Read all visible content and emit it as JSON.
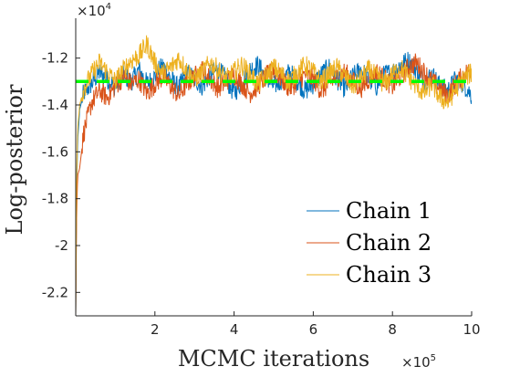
{
  "chart_data": {
    "type": "line",
    "xlabel": "MCMC iterations",
    "ylabel": "Log-posterior",
    "x_exponent_label": "×10",
    "x_exponent_power": "5",
    "y_exponent_label": "×10",
    "y_exponent_power": "4",
    "x_scale": 100000,
    "y_scale": 10000,
    "xlim": [
      0,
      1000000
    ],
    "ylim": [
      -23000,
      -10300
    ],
    "x_ticks": [
      200000,
      400000,
      600000,
      800000,
      1000000
    ],
    "x_tick_labels": [
      "2",
      "4",
      "6",
      "8",
      "10"
    ],
    "y_ticks": [
      -22000,
      -20000,
      -18000,
      -16000,
      -14000,
      -12000
    ],
    "y_tick_labels": [
      "-2.2",
      "-2",
      "-1.8",
      "-1.6",
      "-1.4",
      "-1.2"
    ],
    "grid": false,
    "legend_position": "bottom-right",
    "reference_line": {
      "y": -13000,
      "color": "#00ff00",
      "style": "dashed"
    },
    "series": [
      {
        "name": "Chain 1",
        "color": "#0072bd",
        "points": [
          [
            0,
            -23000
          ],
          [
            2000,
            -18000
          ],
          [
            5000,
            -15500
          ],
          [
            10000,
            -14200
          ],
          [
            20000,
            -13500
          ],
          [
            40000,
            -13100
          ],
          [
            60000,
            -12600
          ],
          [
            80000,
            -12900
          ],
          [
            100000,
            -13200
          ],
          [
            120000,
            -12700
          ],
          [
            140000,
            -13000
          ],
          [
            160000,
            -12500
          ],
          [
            180000,
            -13100
          ],
          [
            200000,
            -12800
          ],
          [
            220000,
            -12300
          ],
          [
            240000,
            -12900
          ],
          [
            260000,
            -13300
          ],
          [
            280000,
            -12600
          ],
          [
            300000,
            -12900
          ],
          [
            320000,
            -13200
          ],
          [
            340000,
            -12700
          ],
          [
            360000,
            -12500
          ],
          [
            380000,
            -12900
          ],
          [
            400000,
            -13500
          ],
          [
            420000,
            -13000
          ],
          [
            440000,
            -12500
          ],
          [
            460000,
            -12300
          ],
          [
            480000,
            -12800
          ],
          [
            500000,
            -13200
          ],
          [
            520000,
            -12900
          ],
          [
            540000,
            -12600
          ],
          [
            560000,
            -13000
          ],
          [
            580000,
            -13400
          ],
          [
            600000,
            -13100
          ],
          [
            620000,
            -12700
          ],
          [
            640000,
            -12400
          ],
          [
            660000,
            -12900
          ],
          [
            680000,
            -13300
          ],
          [
            700000,
            -12800
          ],
          [
            720000,
            -12500
          ],
          [
            740000,
            -12900
          ],
          [
            760000,
            -13200
          ],
          [
            780000,
            -12700
          ],
          [
            800000,
            -12600
          ],
          [
            820000,
            -12300
          ],
          [
            840000,
            -12100
          ],
          [
            860000,
            -12500
          ],
          [
            880000,
            -13000
          ],
          [
            900000,
            -12700
          ],
          [
            920000,
            -13200
          ],
          [
            940000,
            -13400
          ],
          [
            960000,
            -12900
          ],
          [
            980000,
            -13100
          ],
          [
            1000000,
            -13600
          ]
        ]
      },
      {
        "name": "Chain 2",
        "color": "#d95319",
        "points": [
          [
            0,
            -23000
          ],
          [
            2000,
            -19000
          ],
          [
            5000,
            -17000
          ],
          [
            10000,
            -16700
          ],
          [
            20000,
            -15200
          ],
          [
            40000,
            -13900
          ],
          [
            60000,
            -13400
          ],
          [
            80000,
            -13700
          ],
          [
            100000,
            -13200
          ],
          [
            120000,
            -12800
          ],
          [
            140000,
            -13100
          ],
          [
            160000,
            -12900
          ],
          [
            180000,
            -13500
          ],
          [
            200000,
            -13100
          ],
          [
            220000,
            -12800
          ],
          [
            240000,
            -13200
          ],
          [
            260000,
            -13600
          ],
          [
            280000,
            -13100
          ],
          [
            300000,
            -12800
          ],
          [
            320000,
            -12500
          ],
          [
            340000,
            -12900
          ],
          [
            360000,
            -13300
          ],
          [
            380000,
            -13000
          ],
          [
            400000,
            -12700
          ],
          [
            420000,
            -13100
          ],
          [
            440000,
            -13500
          ],
          [
            460000,
            -13200
          ],
          [
            480000,
            -12800
          ],
          [
            500000,
            -12500
          ],
          [
            520000,
            -12900
          ],
          [
            540000,
            -13300
          ],
          [
            560000,
            -13000
          ],
          [
            580000,
            -12700
          ],
          [
            600000,
            -12900
          ],
          [
            620000,
            -13400
          ],
          [
            640000,
            -13100
          ],
          [
            660000,
            -12800
          ],
          [
            680000,
            -12600
          ],
          [
            700000,
            -13000
          ],
          [
            720000,
            -13300
          ],
          [
            740000,
            -12900
          ],
          [
            760000,
            -12600
          ],
          [
            780000,
            -12900
          ],
          [
            800000,
            -13200
          ],
          [
            820000,
            -12800
          ],
          [
            840000,
            -12400
          ],
          [
            860000,
            -12200
          ],
          [
            880000,
            -12600
          ],
          [
            900000,
            -13000
          ],
          [
            920000,
            -13300
          ],
          [
            940000,
            -13600
          ],
          [
            960000,
            -13100
          ],
          [
            980000,
            -12700
          ],
          [
            1000000,
            -12500
          ]
        ]
      },
      {
        "name": "Chain 3",
        "color": "#edb120",
        "points": [
          [
            0,
            -23000
          ],
          [
            2000,
            -17500
          ],
          [
            5000,
            -15000
          ],
          [
            10000,
            -14000
          ],
          [
            20000,
            -13300
          ],
          [
            40000,
            -12700
          ],
          [
            60000,
            -12200
          ],
          [
            80000,
            -12600
          ],
          [
            100000,
            -13000
          ],
          [
            120000,
            -12500
          ],
          [
            140000,
            -12100
          ],
          [
            160000,
            -11900
          ],
          [
            180000,
            -11400
          ],
          [
            200000,
            -12200
          ],
          [
            220000,
            -12700
          ],
          [
            240000,
            -12400
          ],
          [
            260000,
            -12000
          ],
          [
            280000,
            -12500
          ],
          [
            300000,
            -12900
          ],
          [
            320000,
            -12600
          ],
          [
            340000,
            -12200
          ],
          [
            360000,
            -12500
          ],
          [
            380000,
            -12900
          ],
          [
            400000,
            -12600
          ],
          [
            420000,
            -12300
          ],
          [
            440000,
            -12700
          ],
          [
            460000,
            -13100
          ],
          [
            480000,
            -12800
          ],
          [
            500000,
            -12400
          ],
          [
            520000,
            -12700
          ],
          [
            540000,
            -13000
          ],
          [
            560000,
            -12600
          ],
          [
            580000,
            -12300
          ],
          [
            600000,
            -12600
          ],
          [
            620000,
            -13000
          ],
          [
            640000,
            -12700
          ],
          [
            660000,
            -12400
          ],
          [
            680000,
            -12800
          ],
          [
            700000,
            -13200
          ],
          [
            720000,
            -12900
          ],
          [
            740000,
            -12500
          ],
          [
            760000,
            -12800
          ],
          [
            780000,
            -13100
          ],
          [
            800000,
            -12700
          ],
          [
            820000,
            -12400
          ],
          [
            840000,
            -12800
          ],
          [
            860000,
            -13200
          ],
          [
            880000,
            -13500
          ],
          [
            900000,
            -13100
          ],
          [
            920000,
            -13700
          ],
          [
            940000,
            -13900
          ],
          [
            960000,
            -13300
          ],
          [
            980000,
            -12900
          ],
          [
            1000000,
            -12600
          ]
        ]
      }
    ]
  }
}
